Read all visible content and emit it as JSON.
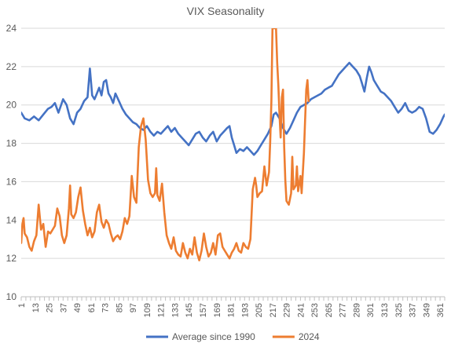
{
  "chart_data": {
    "type": "line",
    "title": "VIX Seasonality",
    "xlabel": "",
    "ylabel": "",
    "x_tick_labels": [
      "1",
      "13",
      "25",
      "37",
      "49",
      "61",
      "73",
      "85",
      "97",
      "109",
      "121",
      "133",
      "145",
      "157",
      "169",
      "181",
      "193",
      "205",
      "217",
      "229",
      "241",
      "253",
      "265",
      "277",
      "289",
      "301",
      "313",
      "325",
      "337",
      "349",
      "361"
    ],
    "x_tick_step": 12,
    "x_range": [
      1,
      365
    ],
    "ylim": [
      10,
      24
    ],
    "y_ticks": [
      10,
      12,
      14,
      16,
      18,
      20,
      22,
      24
    ],
    "grid": "horizontal",
    "legend_position": "bottom",
    "series": [
      {
        "name": "Average since 1990",
        "color": "#4472C4",
        "points": [
          [
            1,
            19.6
          ],
          [
            4,
            19.3
          ],
          [
            8,
            19.2
          ],
          [
            12,
            19.4
          ],
          [
            16,
            19.2
          ],
          [
            20,
            19.5
          ],
          [
            24,
            19.8
          ],
          [
            27,
            19.9
          ],
          [
            30,
            20.1
          ],
          [
            33,
            19.6
          ],
          [
            37,
            20.3
          ],
          [
            40,
            20.0
          ],
          [
            43,
            19.3
          ],
          [
            46,
            19.0
          ],
          [
            49,
            19.6
          ],
          [
            52,
            19.8
          ],
          [
            55,
            20.2
          ],
          [
            58,
            20.4
          ],
          [
            60,
            21.9
          ],
          [
            62,
            20.5
          ],
          [
            64,
            20.3
          ],
          [
            66,
            20.6
          ],
          [
            68,
            20.9
          ],
          [
            70,
            20.5
          ],
          [
            72,
            21.2
          ],
          [
            74,
            21.3
          ],
          [
            76,
            20.6
          ],
          [
            78,
            20.4
          ],
          [
            80,
            20.1
          ],
          [
            82,
            20.6
          ],
          [
            85,
            20.2
          ],
          [
            88,
            19.8
          ],
          [
            91,
            19.5
          ],
          [
            94,
            19.3
          ],
          [
            97,
            19.1
          ],
          [
            100,
            19.0
          ],
          [
            103,
            18.8
          ],
          [
            106,
            18.7
          ],
          [
            109,
            18.9
          ],
          [
            112,
            18.6
          ],
          [
            115,
            18.4
          ],
          [
            118,
            18.6
          ],
          [
            121,
            18.5
          ],
          [
            124,
            18.7
          ],
          [
            127,
            18.9
          ],
          [
            130,
            18.6
          ],
          [
            133,
            18.8
          ],
          [
            136,
            18.5
          ],
          [
            139,
            18.3
          ],
          [
            142,
            18.1
          ],
          [
            145,
            17.9
          ],
          [
            148,
            18.2
          ],
          [
            151,
            18.5
          ],
          [
            154,
            18.6
          ],
          [
            157,
            18.3
          ],
          [
            160,
            18.1
          ],
          [
            163,
            18.4
          ],
          [
            166,
            18.6
          ],
          [
            169,
            18.1
          ],
          [
            172,
            18.4
          ],
          [
            175,
            18.6
          ],
          [
            178,
            18.8
          ],
          [
            180,
            18.9
          ],
          [
            182,
            18.3
          ],
          [
            184,
            17.9
          ],
          [
            186,
            17.5
          ],
          [
            189,
            17.7
          ],
          [
            192,
            17.6
          ],
          [
            195,
            17.8
          ],
          [
            198,
            17.6
          ],
          [
            201,
            17.4
          ],
          [
            204,
            17.6
          ],
          [
            207,
            17.9
          ],
          [
            210,
            18.2
          ],
          [
            213,
            18.5
          ],
          [
            216,
            18.9
          ],
          [
            218,
            19.5
          ],
          [
            220,
            19.6
          ],
          [
            223,
            19.3
          ],
          [
            226,
            18.8
          ],
          [
            229,
            18.5
          ],
          [
            232,
            18.8
          ],
          [
            235,
            19.2
          ],
          [
            238,
            19.6
          ],
          [
            241,
            19.9
          ],
          [
            244,
            20.0
          ],
          [
            247,
            20.1
          ],
          [
            250,
            20.3
          ],
          [
            253,
            20.4
          ],
          [
            256,
            20.5
          ],
          [
            259,
            20.6
          ],
          [
            262,
            20.8
          ],
          [
            265,
            20.9
          ],
          [
            268,
            21.0
          ],
          [
            271,
            21.3
          ],
          [
            274,
            21.6
          ],
          [
            277,
            21.8
          ],
          [
            280,
            22.0
          ],
          [
            283,
            22.2
          ],
          [
            286,
            22.0
          ],
          [
            289,
            21.8
          ],
          [
            292,
            21.5
          ],
          [
            294,
            21.1
          ],
          [
            296,
            20.7
          ],
          [
            298,
            21.4
          ],
          [
            300,
            22.0
          ],
          [
            302,
            21.7
          ],
          [
            304,
            21.3
          ],
          [
            307,
            21.0
          ],
          [
            310,
            20.7
          ],
          [
            313,
            20.6
          ],
          [
            316,
            20.4
          ],
          [
            319,
            20.2
          ],
          [
            322,
            19.9
          ],
          [
            325,
            19.6
          ],
          [
            328,
            19.8
          ],
          [
            331,
            20.1
          ],
          [
            334,
            19.7
          ],
          [
            337,
            19.6
          ],
          [
            340,
            19.7
          ],
          [
            343,
            19.9
          ],
          [
            346,
            19.8
          ],
          [
            349,
            19.3
          ],
          [
            352,
            18.6
          ],
          [
            355,
            18.5
          ],
          [
            358,
            18.7
          ],
          [
            361,
            19.0
          ],
          [
            364,
            19.4
          ],
          [
            365,
            19.5
          ]
        ]
      },
      {
        "name": "2024",
        "color": "#ED7D31",
        "points": [
          [
            1,
            12.8
          ],
          [
            2,
            13.8
          ],
          [
            3,
            14.1
          ],
          [
            4,
            13.3
          ],
          [
            6,
            13.1
          ],
          [
            8,
            12.6
          ],
          [
            10,
            12.4
          ],
          [
            12,
            12.9
          ],
          [
            14,
            13.2
          ],
          [
            16,
            14.8
          ],
          [
            18,
            13.5
          ],
          [
            20,
            13.8
          ],
          [
            22,
            12.6
          ],
          [
            24,
            13.4
          ],
          [
            26,
            13.3
          ],
          [
            28,
            13.5
          ],
          [
            30,
            13.7
          ],
          [
            32,
            14.6
          ],
          [
            34,
            14.2
          ],
          [
            36,
            13.2
          ],
          [
            38,
            12.8
          ],
          [
            40,
            13.2
          ],
          [
            42,
            14.6
          ],
          [
            43,
            15.8
          ],
          [
            44,
            14.3
          ],
          [
            46,
            14.1
          ],
          [
            48,
            14.4
          ],
          [
            50,
            15.2
          ],
          [
            52,
            15.7
          ],
          [
            54,
            14.5
          ],
          [
            56,
            13.8
          ],
          [
            58,
            13.2
          ],
          [
            60,
            13.6
          ],
          [
            62,
            13.1
          ],
          [
            64,
            13.4
          ],
          [
            66,
            14.4
          ],
          [
            68,
            14.8
          ],
          [
            70,
            13.9
          ],
          [
            72,
            13.6
          ],
          [
            74,
            14.0
          ],
          [
            76,
            13.8
          ],
          [
            78,
            13.3
          ],
          [
            80,
            12.9
          ],
          [
            82,
            13.1
          ],
          [
            84,
            13.2
          ],
          [
            86,
            13.0
          ],
          [
            88,
            13.4
          ],
          [
            90,
            14.1
          ],
          [
            92,
            13.8
          ],
          [
            94,
            14.2
          ],
          [
            96,
            16.3
          ],
          [
            98,
            15.2
          ],
          [
            100,
            14.9
          ],
          [
            102,
            17.8
          ],
          [
            104,
            18.9
          ],
          [
            106,
            19.3
          ],
          [
            108,
            18.2
          ],
          [
            110,
            16.1
          ],
          [
            112,
            15.4
          ],
          [
            114,
            15.2
          ],
          [
            116,
            15.4
          ],
          [
            117,
            16.7
          ],
          [
            118,
            15.3
          ],
          [
            120,
            15.0
          ],
          [
            122,
            15.9
          ],
          [
            124,
            14.4
          ],
          [
            126,
            13.2
          ],
          [
            128,
            12.8
          ],
          [
            130,
            12.5
          ],
          [
            132,
            13.1
          ],
          [
            134,
            12.4
          ],
          [
            136,
            12.2
          ],
          [
            138,
            12.1
          ],
          [
            140,
            12.8
          ],
          [
            142,
            12.3
          ],
          [
            144,
            12.0
          ],
          [
            146,
            12.5
          ],
          [
            148,
            12.2
          ],
          [
            150,
            13.1
          ],
          [
            152,
            12.3
          ],
          [
            154,
            11.9
          ],
          [
            156,
            12.4
          ],
          [
            158,
            13.3
          ],
          [
            160,
            12.6
          ],
          [
            162,
            12.1
          ],
          [
            164,
            12.3
          ],
          [
            166,
            12.8
          ],
          [
            168,
            12.2
          ],
          [
            170,
            13.2
          ],
          [
            172,
            13.3
          ],
          [
            174,
            12.6
          ],
          [
            176,
            12.4
          ],
          [
            178,
            12.2
          ],
          [
            180,
            12.0
          ],
          [
            182,
            12.3
          ],
          [
            184,
            12.5
          ],
          [
            186,
            12.8
          ],
          [
            188,
            12.4
          ],
          [
            190,
            12.3
          ],
          [
            192,
            12.8
          ],
          [
            194,
            12.6
          ],
          [
            196,
            12.5
          ],
          [
            198,
            13.0
          ],
          [
            200,
            15.6
          ],
          [
            202,
            16.2
          ],
          [
            203,
            15.8
          ],
          [
            204,
            15.2
          ],
          [
            206,
            15.4
          ],
          [
            208,
            15.5
          ],
          [
            210,
            16.8
          ],
          [
            212,
            15.8
          ],
          [
            214,
            16.5
          ],
          [
            215,
            18.1
          ],
          [
            216,
            20.2
          ],
          [
            217,
            24.0
          ],
          [
            220,
            24.0
          ],
          [
            221,
            22.2
          ],
          [
            222,
            21.0
          ],
          [
            223,
            19.5
          ],
          [
            224,
            18.3
          ],
          [
            225,
            20.4
          ],
          [
            226,
            20.8
          ],
          [
            227,
            17.8
          ],
          [
            228,
            16.1
          ],
          [
            229,
            15.0
          ],
          [
            231,
            14.8
          ],
          [
            233,
            15.4
          ],
          [
            234,
            17.3
          ],
          [
            235,
            15.6
          ],
          [
            237,
            15.8
          ],
          [
            238,
            16.8
          ],
          [
            239,
            15.5
          ],
          [
            240,
            15.9
          ],
          [
            241,
            16.3
          ],
          [
            242,
            15.4
          ],
          [
            243,
            16.4
          ],
          [
            244,
            17.5
          ],
          [
            245,
            19.2
          ],
          [
            246,
            20.8
          ],
          [
            247,
            21.3
          ],
          [
            248,
            20.2
          ]
        ]
      }
    ]
  }
}
